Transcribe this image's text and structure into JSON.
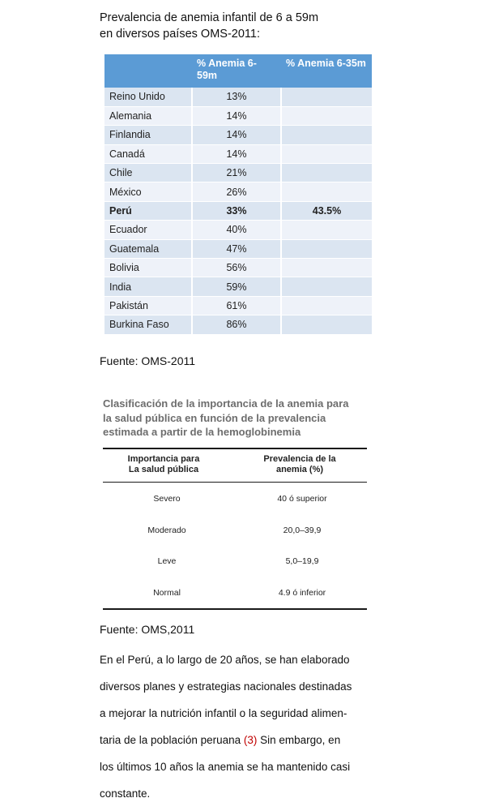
{
  "intro": {
    "line1": "Prevalencia de anemia infantil de 6 a 59m",
    "line2": "en diversos países OMS-2011:"
  },
  "anemia_table": {
    "headers": [
      "",
      "% Anemia 6-59m",
      "% Anemia 6-35m"
    ],
    "rows": [
      {
        "country": "Reino Unido",
        "p659": "13%",
        "p635": ""
      },
      {
        "country": "Alemania",
        "p659": "14%",
        "p635": ""
      },
      {
        "country": "Finlandia",
        "p659": "14%",
        "p635": ""
      },
      {
        "country": "Canadá",
        "p659": "14%",
        "p635": ""
      },
      {
        "country": "Chile",
        "p659": "21%",
        "p635": ""
      },
      {
        "country": "México",
        "p659": "26%",
        "p635": ""
      },
      {
        "country": "Perú",
        "p659": "33%",
        "p635": "43.5%"
      },
      {
        "country": "Ecuador",
        "p659": "40%",
        "p635": ""
      },
      {
        "country": "Guatemala",
        "p659": "47%",
        "p635": ""
      },
      {
        "country": "Bolivia",
        "p659": "56%",
        "p635": ""
      },
      {
        "country": "India",
        "p659": "59%",
        "p635": ""
      },
      {
        "country": "Pakistán",
        "p659": "61%",
        "p635": ""
      },
      {
        "country": "Burkina Faso",
        "p659": "86%",
        "p635": ""
      }
    ],
    "header_color": "#5b9bd5",
    "row_color_odd": "#dbe5f1",
    "row_color_even": "#eef2f9"
  },
  "source1": "Fuente: OMS-2011",
  "classification": {
    "title_line1": "Clasificación de la importancia de la anemia para",
    "title_line2": "la salud pública  en función de la prevalencia",
    "title_line3": "estimada a partir de la hemoglobinemia",
    "header_col1_line1": "Importancia para",
    "header_col1_line2": "La salud pública",
    "header_col2_line1": "Prevalencia de la",
    "header_col2_line2": "anemia (%)",
    "rows": [
      {
        "importance": "Severo",
        "prevalence": "40 ó superior"
      },
      {
        "importance": "Moderado",
        "prevalence": "20,0–39,9"
      },
      {
        "importance": "Leve",
        "prevalence": "5,0–19,9"
      },
      {
        "importance": "Normal",
        "prevalence": "4.9 ó inferior"
      }
    ]
  },
  "source2": "Fuente: OMS,2011",
  "paragraph": {
    "line1": "En el Perú, a lo largo de 20 años, se han elaborado",
    "line2": "diversos planes y estrategias nacionales destinadas",
    "line3": "a mejorar la nutrición infantil o la seguridad alimen-",
    "line4_before": "taria de la población peruana ",
    "citation": "(3)",
    "line4_after": " Sin embargo, en",
    "line5": "los últimos 10 años la anemia se ha mantenido casi",
    "line6": "constante."
  }
}
